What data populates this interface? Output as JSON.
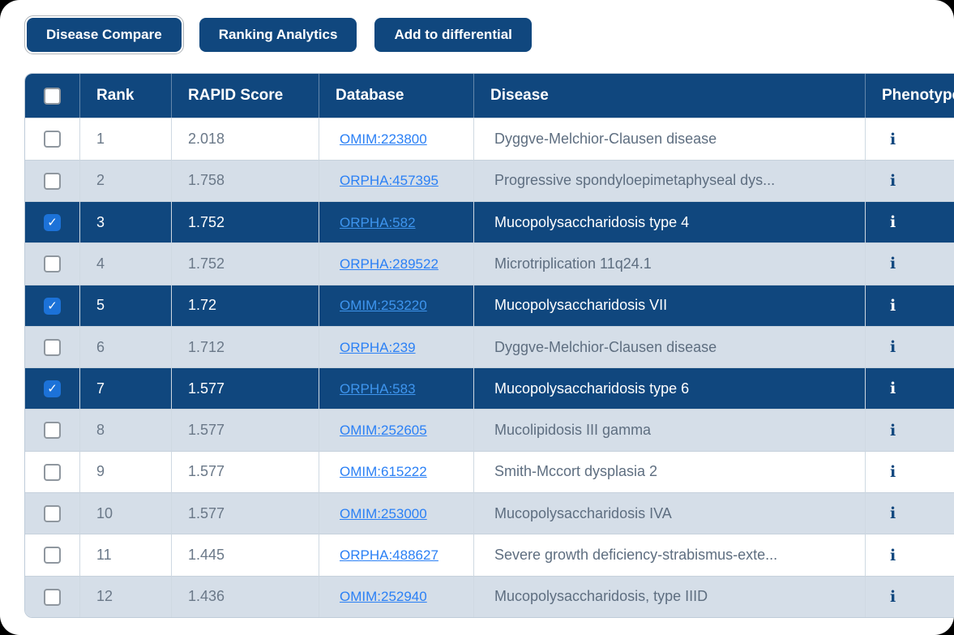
{
  "toolbar": {
    "buttons": [
      {
        "label": "Disease Compare"
      },
      {
        "label": "Ranking Analytics"
      },
      {
        "label": "Add to differential"
      }
    ]
  },
  "table": {
    "columns": {
      "rank": "Rank",
      "score": "RAPID Score",
      "database": "Database",
      "disease": "Disease",
      "phenotypes": "Phenotypes"
    },
    "info_icon": "i",
    "rows": [
      {
        "rank": "1",
        "score": "2.018",
        "database": "OMIM:223800",
        "disease": "Dyggve-Melchior-Clausen disease",
        "selected": false
      },
      {
        "rank": "2",
        "score": "1.758",
        "database": "ORPHA:457395",
        "disease": "Progressive spondyloepimetaphyseal dys...",
        "selected": false
      },
      {
        "rank": "3",
        "score": "1.752",
        "database": "ORPHA:582",
        "disease": "Mucopolysaccharidosis type 4",
        "selected": true
      },
      {
        "rank": "4",
        "score": "1.752",
        "database": "ORPHA:289522",
        "disease": "Microtriplication 11q24.1",
        "selected": false
      },
      {
        "rank": "5",
        "score": "1.72",
        "database": "OMIM:253220",
        "disease": "Mucopolysaccharidosis VII",
        "selected": true
      },
      {
        "rank": "6",
        "score": "1.712",
        "database": "ORPHA:239",
        "disease": "Dyggve-Melchior-Clausen disease",
        "selected": false
      },
      {
        "rank": "7",
        "score": "1.577",
        "database": "ORPHA:583",
        "disease": "Mucopolysaccharidosis type 6",
        "selected": true
      },
      {
        "rank": "8",
        "score": "1.577",
        "database": "OMIM:252605",
        "disease": "Mucolipidosis III gamma",
        "selected": false
      },
      {
        "rank": "9",
        "score": "1.577",
        "database": "OMIM:615222",
        "disease": "Smith-Mccort dysplasia 2",
        "selected": false
      },
      {
        "rank": "10",
        "score": "1.577",
        "database": "OMIM:253000",
        "disease": "Mucopolysaccharidosis IVA",
        "selected": false
      },
      {
        "rank": "11",
        "score": "1.445",
        "database": "ORPHA:488627",
        "disease": "Severe growth deficiency-strabismus-exte...",
        "selected": false
      },
      {
        "rank": "12",
        "score": "1.436",
        "database": "OMIM:252940",
        "disease": "Mucopolysaccharidosis, type IIID",
        "selected": false
      }
    ]
  },
  "colors": {
    "navy": "#10477E",
    "stripe": "#D5DEE8",
    "link_blue": "#2B80F5",
    "selected_link_blue": "#3E95EE",
    "checkbox_blue": "#1C72D8",
    "body_text": "#5E6E80"
  }
}
